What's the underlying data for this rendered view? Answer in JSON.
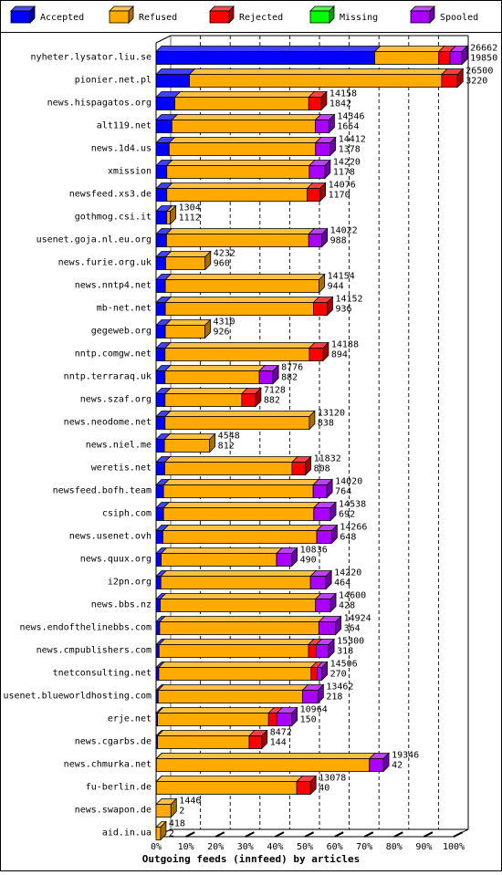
{
  "chart_data": {
    "type": "bar",
    "orientation": "horizontal",
    "stacked": true,
    "title": "",
    "xlabel": "Outgoing feeds (innfeed) by articles",
    "ylabel": "",
    "xlim": [
      0,
      100
    ],
    "x_ticks": [
      "0%",
      "10%",
      "20%",
      "30%",
      "40%",
      "50%",
      "60%",
      "70%",
      "80%",
      "90%",
      "100%"
    ],
    "grid": true,
    "legend_position": "top",
    "legend": [
      {
        "name": "Accepted",
        "color": "#0000ff"
      },
      {
        "name": "Refused",
        "color": "#ffaa00"
      },
      {
        "name": "Rejected",
        "color": "#ff0000"
      },
      {
        "name": "Missing",
        "color": "#00ff00"
      },
      {
        "name": "Spooled",
        "color": "#aa00ff"
      }
    ],
    "categories": [
      "nyheter.lysator.liu.se",
      "pionier.net.pl",
      "news.hispagatos.org",
      "alt119.net",
      "news.1d4.us",
      "xmission",
      "newsfeed.xs3.de",
      "gothmog.csi.it",
      "usenet.goja.nl.eu.org",
      "news.furie.org.uk",
      "news.nntp4.net",
      "mb-net.net",
      "gegeweb.org",
      "nntp.comgw.net",
      "nntp.terraraq.uk",
      "news.szaf.org",
      "news.neodome.net",
      "news.niel.me",
      "weretis.net",
      "newsfeed.bofh.team",
      "csiph.com",
      "news.usenet.ovh",
      "news.quux.org",
      "i2pn.org",
      "news.bbs.nz",
      "news.endofthelinebbs.com",
      "news.cmpublishers.com",
      "tnetconsulting.net",
      "usenet.blueworldhosting.com",
      "erje.net",
      "news.cgarbs.de",
      "news.chmurka.net",
      "fu-berlin.de",
      "news.swapon.de",
      "aid.in.ua"
    ],
    "offered": [
      26662,
      26500,
      14158,
      14346,
      14412,
      14220,
      14076,
      1304,
      14022,
      4232,
      14154,
      14152,
      4310,
      14188,
      8776,
      7128,
      13120,
      4548,
      11832,
      14020,
      14538,
      14266,
      10836,
      14220,
      14600,
      14924,
      15300,
      14506,
      13462,
      10964,
      8472,
      19346,
      13078,
      1446,
      418
    ],
    "accepted_count": [
      19850,
      3220,
      1842,
      1654,
      1378,
      1178,
      1170,
      1112,
      988,
      960,
      944,
      936,
      926,
      894,
      882,
      882,
      838,
      812,
      808,
      764,
      692,
      648,
      490,
      464,
      428,
      364,
      318,
      270,
      218,
      150,
      144,
      42,
      40,
      2,
      2
    ],
    "series": [
      {
        "name": "Accepted",
        "values": [
          73.5,
          11.2,
          6.3,
          5.3,
          4.4,
          3.6,
          3.6,
          3.6,
          3.5,
          3.2,
          3.1,
          3.1,
          3.1,
          3.0,
          3.0,
          3.0,
          3.0,
          2.8,
          2.9,
          2.5,
          2.5,
          2.3,
          1.7,
          1.6,
          1.4,
          1.2,
          1.0,
          0.9,
          0.7,
          0.5,
          0.5,
          0.1,
          0.1,
          0.0,
          0.0
        ]
      },
      {
        "name": "Refused",
        "values": [
          21.5,
          84.8,
          45.0,
          48.2,
          49.2,
          47.9,
          47.2,
          1.2,
          47.8,
          13.3,
          51.7,
          49.8,
          13.3,
          48.5,
          31.7,
          25.8,
          48.5,
          15.2,
          42.8,
          50.3,
          50.5,
          51.7,
          38.8,
          50.3,
          52.2,
          53.5,
          50.2,
          51.2,
          48.5,
          37.3,
          30.8,
          71.6,
          47.2,
          5.0,
          1.5
        ]
      },
      {
        "name": "Rejected",
        "values": [
          3.8,
          5.3,
          4.2,
          0,
          0,
          0,
          4.3,
          0,
          0,
          0,
          0,
          4.6,
          0,
          4.6,
          0,
          4.6,
          0,
          0,
          4.5,
          0,
          0,
          0,
          0,
          0,
          0,
          0,
          2.6,
          2.0,
          0,
          2.8,
          4.2,
          0,
          4.6,
          0,
          0
        ]
      },
      {
        "name": "Missing",
        "values": [
          0,
          0,
          0,
          0,
          0,
          0,
          0,
          0,
          0,
          0,
          0,
          0,
          0,
          0,
          0,
          0,
          0,
          0,
          0,
          0,
          0,
          0,
          0,
          0,
          0,
          0,
          0,
          0,
          0,
          0,
          0,
          0,
          0,
          0,
          0
        ]
      },
      {
        "name": "Spooled",
        "values": [
          4.0,
          0,
          0,
          4.6,
          4.9,
          5.2,
          0,
          0,
          4.4,
          0,
          0,
          0,
          0,
          0,
          4.6,
          0,
          0,
          0,
          0,
          4.6,
          5.6,
          5.0,
          5.1,
          5.2,
          5.0,
          5.6,
          4.2,
          1.6,
          5.2,
          5.0,
          0,
          4.7,
          0,
          0,
          0
        ]
      }
    ]
  }
}
